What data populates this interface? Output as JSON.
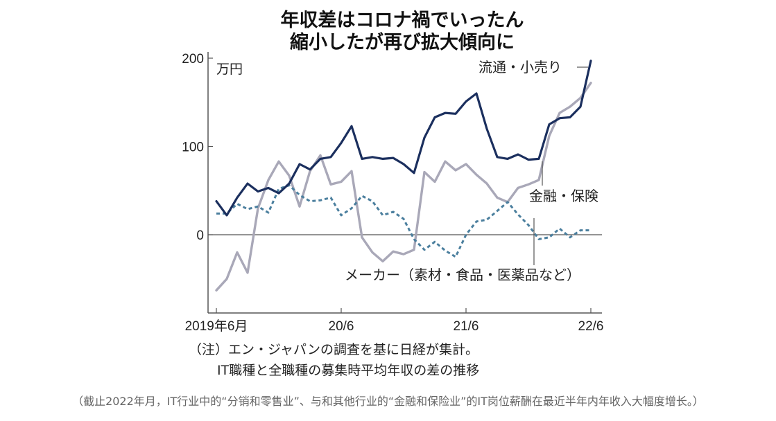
{
  "chart_data": {
    "type": "line",
    "title_lines": [
      "年収差はコロナ禍でいったん",
      "縮小したが再び拡大傾向に"
    ],
    "unit": "万円",
    "ylim": [
      -85,
      200
    ],
    "yticks": [
      "200",
      "100",
      "0"
    ],
    "ytick_values": [
      200,
      100,
      0
    ],
    "x_ticks": [
      {
        "label": "2019年6月",
        "month_index": 0
      },
      {
        "label": "20/6",
        "month_index": 12
      },
      {
        "label": "21/6",
        "month_index": 24
      },
      {
        "label": "22/6",
        "month_index": 36
      }
    ],
    "series": [
      {
        "name": "流通・小売り",
        "color": "#1b2f5e",
        "style": "solid",
        "points": [
          [
            0,
            38
          ],
          [
            1,
            22
          ],
          [
            2,
            42
          ],
          [
            3,
            58
          ],
          [
            4,
            49
          ],
          [
            5,
            53
          ],
          [
            6,
            47
          ],
          [
            7,
            58
          ],
          [
            8,
            80
          ],
          [
            9,
            74
          ],
          [
            10,
            86
          ],
          [
            11,
            88
          ],
          [
            12,
            104
          ],
          [
            13,
            123
          ],
          [
            14,
            86
          ],
          [
            15,
            88
          ],
          [
            16,
            86
          ],
          [
            17,
            87
          ],
          [
            18,
            80
          ],
          [
            19,
            70
          ],
          [
            20,
            110
          ],
          [
            21,
            133
          ],
          [
            22,
            138
          ],
          [
            23,
            137
          ],
          [
            24,
            151
          ],
          [
            25,
            160
          ],
          [
            26,
            120
          ],
          [
            27,
            88
          ],
          [
            28,
            86
          ],
          [
            29,
            91
          ],
          [
            30,
            85
          ],
          [
            31,
            86
          ],
          [
            32,
            125
          ],
          [
            33,
            132
          ],
          [
            34,
            133
          ],
          [
            35,
            145
          ],
          [
            36,
            197
          ]
        ]
      },
      {
        "name": "金融・保険",
        "color": "#a9a8b8",
        "style": "solid",
        "points": [
          [
            0,
            -63
          ],
          [
            1,
            -50
          ],
          [
            2,
            -20
          ],
          [
            3,
            -43
          ],
          [
            4,
            30
          ],
          [
            5,
            62
          ],
          [
            6,
            83
          ],
          [
            7,
            67
          ],
          [
            8,
            32
          ],
          [
            9,
            72
          ],
          [
            10,
            90
          ],
          [
            11,
            57
          ],
          [
            12,
            60
          ],
          [
            13,
            72
          ],
          [
            14,
            -3
          ],
          [
            15,
            -20
          ],
          [
            16,
            -30
          ],
          [
            17,
            -19
          ],
          [
            18,
            -22
          ],
          [
            19,
            -17
          ],
          [
            20,
            71
          ],
          [
            21,
            60
          ],
          [
            22,
            83
          ],
          [
            23,
            73
          ],
          [
            24,
            80
          ],
          [
            25,
            68
          ],
          [
            26,
            58
          ],
          [
            27,
            42
          ],
          [
            28,
            37
          ],
          [
            29,
            53
          ],
          [
            30,
            57
          ],
          [
            31,
            62
          ],
          [
            32,
            112
          ],
          [
            33,
            138
          ],
          [
            34,
            145
          ],
          [
            35,
            155
          ],
          [
            36,
            172
          ]
        ]
      },
      {
        "name": "メーカー（素材・食品・医薬品など）",
        "color": "#4b7f9e",
        "style": "dashed",
        "points": [
          [
            0,
            24
          ],
          [
            1,
            24
          ],
          [
            2,
            35
          ],
          [
            3,
            29
          ],
          [
            4,
            32
          ],
          [
            5,
            25
          ],
          [
            6,
            52
          ],
          [
            7,
            56
          ],
          [
            8,
            45
          ],
          [
            9,
            38
          ],
          [
            10,
            39
          ],
          [
            11,
            42
          ],
          [
            12,
            22
          ],
          [
            13,
            30
          ],
          [
            14,
            44
          ],
          [
            15,
            38
          ],
          [
            16,
            22
          ],
          [
            17,
            26
          ],
          [
            18,
            18
          ],
          [
            19,
            -5
          ],
          [
            20,
            -17
          ],
          [
            21,
            -8
          ],
          [
            22,
            -18
          ],
          [
            23,
            -25
          ],
          [
            24,
            0
          ],
          [
            25,
            15
          ],
          [
            26,
            17
          ],
          [
            27,
            27
          ],
          [
            28,
            37
          ],
          [
            29,
            23
          ],
          [
            30,
            11
          ],
          [
            31,
            -5
          ],
          [
            32,
            -3
          ],
          [
            33,
            7
          ],
          [
            34,
            -3
          ],
          [
            35,
            5
          ],
          [
            36,
            5
          ]
        ]
      }
    ],
    "grid": false,
    "zero_line": true
  },
  "notes": {
    "line1": "（注）エン・ジャパンの調査を基に日経が集計。",
    "line2": "IT職種と全職種の募集時平均年収の差の推移"
  },
  "caption": "（截止2022年月，IT行业中的“分销和零售业”、与和其他行业的“金融和保险业”的IT岗位薪酬在最近半年内年收入大幅度增长。）"
}
